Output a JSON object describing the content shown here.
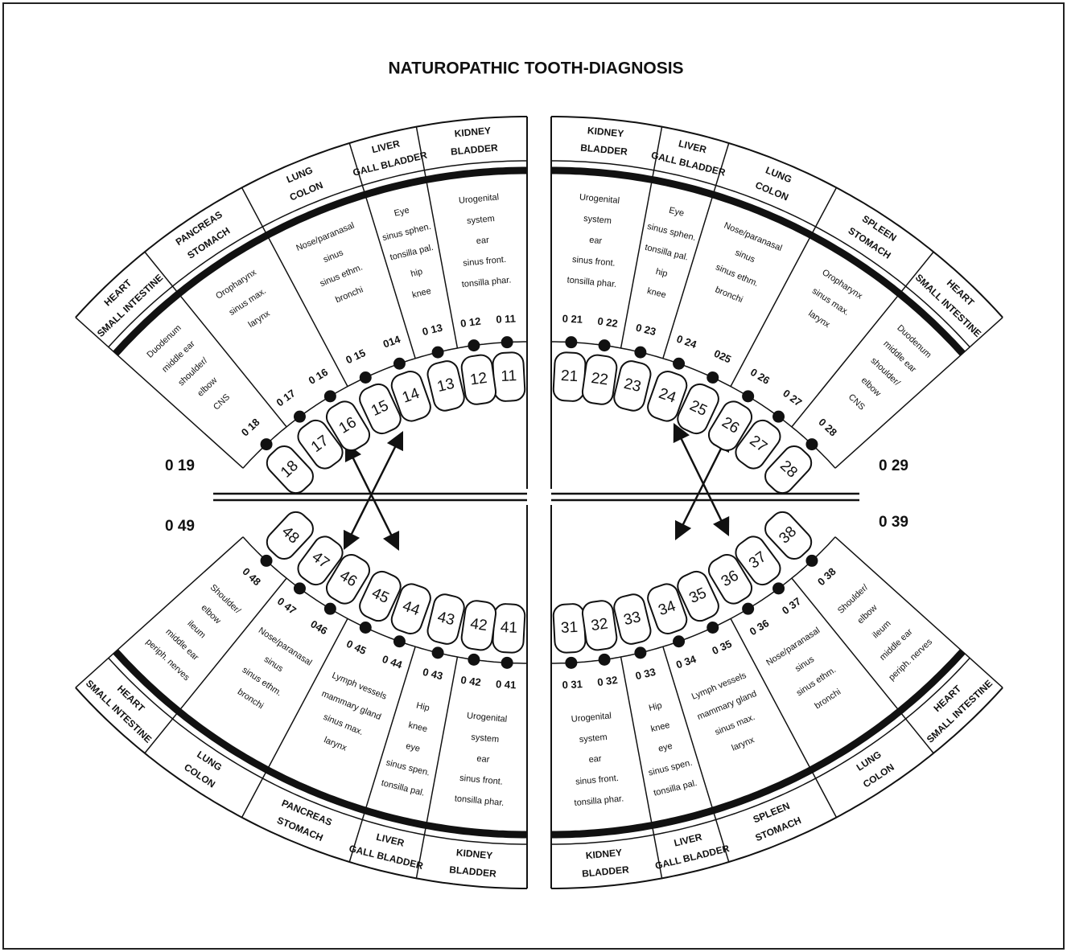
{
  "title": "NATUROPATHIC TOOTH-DIAGNOSIS",
  "quadrants": [
    {
      "sectors": [
        {
          "organ": [
            "KIDNEY",
            "BLADDER"
          ],
          "indications": [
            "Urogenital",
            "system",
            "ear",
            "sinus front.",
            "tonsilla phar."
          ]
        },
        {
          "organ": [
            "LIVER",
            "GALL BLADDER"
          ],
          "indications": [
            "Eye",
            "sinus sphen.",
            "tonsilla pal.",
            "hip",
            "knee"
          ]
        },
        {
          "organ": [
            "LUNG",
            "COLON"
          ],
          "indications": [
            "Nose/paranasal",
            "sinus",
            "sinus ethm.",
            "bronchi"
          ]
        },
        {
          "organ": [
            "PANCREAS",
            "STOMACH"
          ],
          "indications": [
            "Oropharynx",
            "sinus max.",
            "larynx"
          ]
        },
        {
          "organ": [
            "HEART",
            "SMALL INTESTINE"
          ],
          "indications": [
            "Duodenum",
            "middle ear",
            "shoulder/",
            "elbow",
            "CNS"
          ]
        }
      ],
      "teeth": [
        {
          "number": "11",
          "point": "0 11"
        },
        {
          "number": "12",
          "point": "0 12"
        },
        {
          "number": "13",
          "point": "0 13"
        },
        {
          "number": "14",
          "point": "014"
        },
        {
          "number": "15",
          "point": "0 15"
        },
        {
          "number": "16",
          "point": "0 16"
        },
        {
          "number": "17",
          "point": "0 17"
        },
        {
          "number": "18",
          "point": "0 18"
        }
      ],
      "end_point": "0 19"
    },
    {
      "sectors": [
        {
          "organ": [
            "KIDNEY",
            "BLADDER"
          ],
          "indications": [
            "Urogenital",
            "system",
            "ear",
            "sinus front.",
            "tonsilla phar."
          ]
        },
        {
          "organ": [
            "LIVER",
            "GALL BLADDER"
          ],
          "indications": [
            "Eye",
            "sinus sphen.",
            "tonsilla pal.",
            "hip",
            "knee"
          ]
        },
        {
          "organ": [
            "LUNG",
            "COLON"
          ],
          "indications": [
            "Nose/paranasal",
            "sinus",
            "sinus ethm.",
            "bronchi"
          ]
        },
        {
          "organ": [
            "SPLEEN",
            "STOMACH"
          ],
          "indications": [
            "Oropharynx",
            "sinus max.",
            "larynx"
          ]
        },
        {
          "organ": [
            "HEART",
            "SMALL INTESTINE"
          ],
          "indications": [
            "Duodenum",
            "middle ear",
            "shoulder/",
            "elbow",
            "CNS"
          ]
        }
      ],
      "teeth": [
        {
          "number": "21",
          "point": "0 21"
        },
        {
          "number": "22",
          "point": "0 22"
        },
        {
          "number": "23",
          "point": "0 23"
        },
        {
          "number": "24",
          "point": "0 24"
        },
        {
          "number": "25",
          "point": "025"
        },
        {
          "number": "26",
          "point": "0 26"
        },
        {
          "number": "27",
          "point": "0 27"
        },
        {
          "number": "28",
          "point": "0 28"
        }
      ],
      "end_point": "0 29"
    },
    {
      "sectors": [
        {
          "organ": [
            "KIDNEY",
            "BLADDER"
          ],
          "indications": [
            "Urogenital",
            "system",
            "ear",
            "sinus front.",
            "tonsilla phar."
          ]
        },
        {
          "organ": [
            "LIVER",
            "GALL BLADDER"
          ],
          "indications": [
            "Hip",
            "knee",
            "eye",
            "sinus spen.",
            "tonsilla pal."
          ]
        },
        {
          "organ": [
            "PANCREAS",
            "STOMACH"
          ],
          "indications": [
            "Lymph vessels",
            "mammary gland",
            "sinus max.",
            "larynx"
          ]
        },
        {
          "organ": [
            "LUNG",
            "COLON"
          ],
          "indications": [
            "Nose/paranasal",
            "sinus",
            "sinus ethm.",
            "bronchi"
          ]
        },
        {
          "organ": [
            "HEART",
            "SMALL INTESTINE"
          ],
          "indications": [
            "Shoulder/",
            "elbow",
            "ileum",
            "middle ear",
            "periph. nerves"
          ]
        }
      ],
      "teeth": [
        {
          "number": "41",
          "point": "0 41"
        },
        {
          "number": "42",
          "point": "0 42"
        },
        {
          "number": "43",
          "point": "0 43"
        },
        {
          "number": "44",
          "point": "0 44"
        },
        {
          "number": "45",
          "point": "0 45"
        },
        {
          "number": "46",
          "point": "046"
        },
        {
          "number": "47",
          "point": "0 47"
        },
        {
          "number": "48",
          "point": "0 48"
        }
      ],
      "end_point": "0 49"
    },
    {
      "sectors": [
        {
          "organ": [
            "KIDNEY",
            "BLADDER"
          ],
          "indications": [
            "Urogenital",
            "system",
            "ear",
            "sinus front.",
            "tonsilla phar."
          ]
        },
        {
          "organ": [
            "LIVER",
            "GALL BLADDER"
          ],
          "indications": [
            "Hip",
            "knee",
            "eye",
            "sinus spen.",
            "tonsilla pal."
          ]
        },
        {
          "organ": [
            "SPLEEN",
            "STOMACH"
          ],
          "indications": [
            "Lymph vessels",
            "mammary gland",
            "sinus max.",
            "larynx"
          ]
        },
        {
          "organ": [
            "LUNG",
            "COLON"
          ],
          "indications": [
            "Nose/paranasal",
            "sinus",
            "sinus ethm.",
            "bronchi"
          ]
        },
        {
          "organ": [
            "HEART",
            "SMALL INTESTINE"
          ],
          "indications": [
            "Shoulder/",
            "elbow",
            "ileum",
            "middle ear",
            "periph. nerves"
          ]
        }
      ],
      "teeth": [
        {
          "number": "31",
          "point": "0 31"
        },
        {
          "number": "32",
          "point": "0 32"
        },
        {
          "number": "33",
          "point": "0 33"
        },
        {
          "number": "34",
          "point": "0 34"
        },
        {
          "number": "35",
          "point": "0 35"
        },
        {
          "number": "36",
          "point": "0 36"
        },
        {
          "number": "37",
          "point": "0 37"
        },
        {
          "number": "38",
          "point": "0 38"
        }
      ],
      "end_point": "0 39"
    }
  ]
}
